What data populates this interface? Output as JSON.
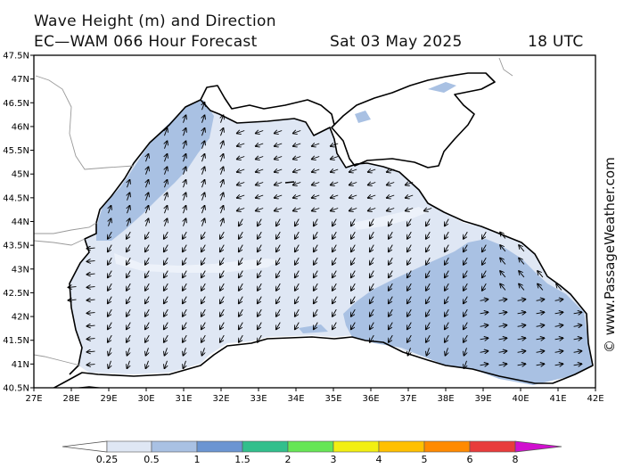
{
  "header": {
    "title": "Wave Height (m) and Direction",
    "model_line": "EC—WAM 066 Hour Forecast",
    "date": "Sat 03 May 2025",
    "time": "18 UTC"
  },
  "credit": "© www.PassageWeather.com",
  "map": {
    "lon_labels": [
      "27E",
      "28E",
      "29E",
      "30E",
      "31E",
      "32E",
      "33E",
      "34E",
      "35E",
      "36E",
      "37E",
      "38E",
      "39E",
      "40E",
      "41E",
      "42E"
    ],
    "lat_labels": [
      "47.5N",
      "47N",
      "46.5N",
      "46N",
      "45.5N",
      "45N",
      "44.5N",
      "44N",
      "43.5N",
      "43N",
      "42.5N",
      "42N",
      "41.5N",
      "41N",
      "40.5N"
    ],
    "lon_range": [
      27,
      42
    ],
    "lat_range": [
      40.5,
      47.5
    ]
  },
  "legend": {
    "labels": [
      "0.25",
      "0.5",
      "1",
      "1.5",
      "2",
      "3",
      "4",
      "5",
      "6",
      "8"
    ],
    "colors": [
      "#ffffff",
      "#dfe7f4",
      "#a9c1e3",
      "#6b95d2",
      "#32bf8c",
      "#66e655",
      "#f2ef12",
      "#ffc000",
      "#ff8a00",
      "#e83c3c",
      "#b8000f",
      "#d10fcf"
    ]
  }
}
